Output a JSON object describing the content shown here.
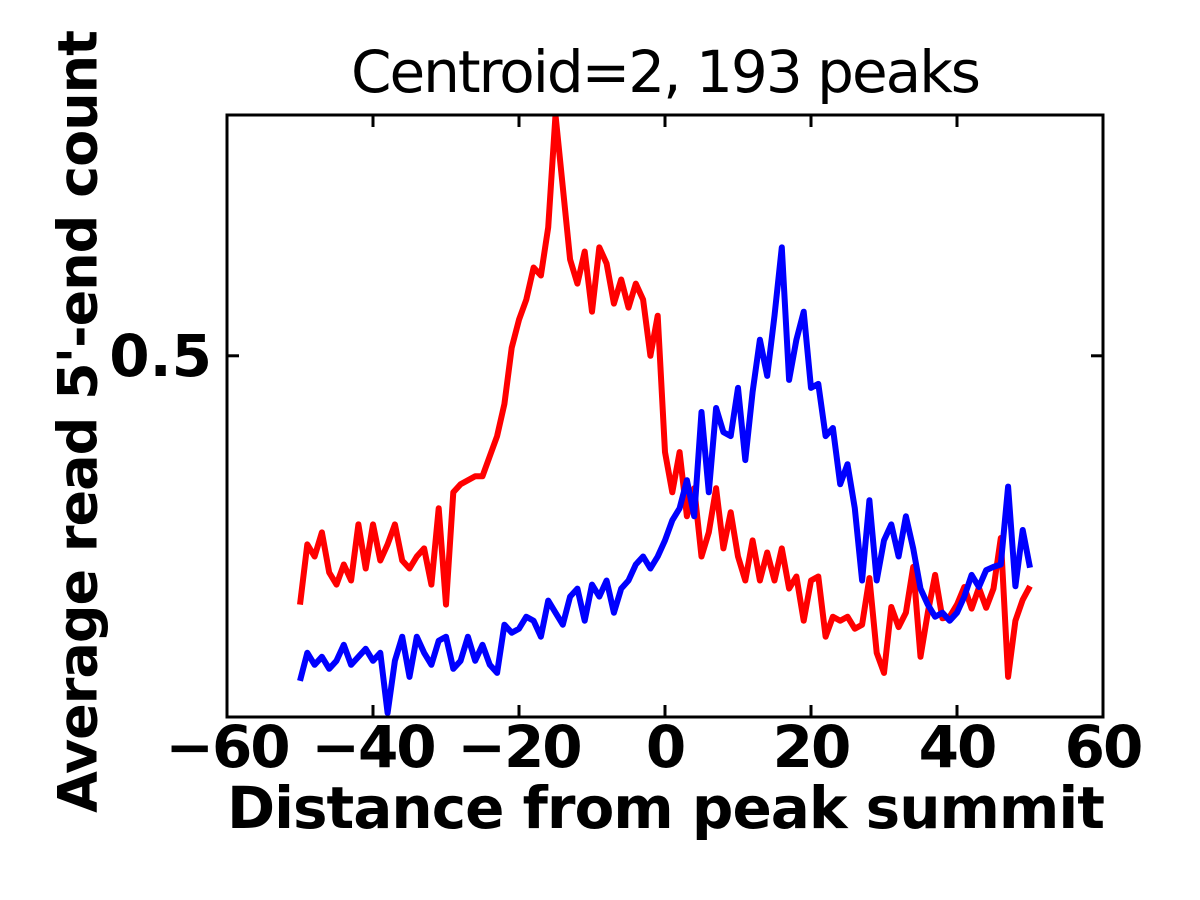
{
  "title": "Centroid=2, 193 peaks",
  "xlabel": "Distance from peak summit",
  "ylabel": "Average read 5'-end count",
  "colors": {
    "red_series": "#ff0000",
    "blue_series": "#0000ff",
    "axis": "#000000",
    "background": "#ffffff"
  },
  "axes": {
    "xlim": [
      -60,
      60
    ],
    "ylim": [
      0.05,
      0.8
    ],
    "xticks": [
      -60,
      -40,
      -20,
      0,
      20,
      40,
      60
    ],
    "xtick_labels": [
      "−60",
      "−40",
      "−20",
      "0",
      "20",
      "40",
      "60"
    ],
    "yticks": [
      0.5
    ],
    "ytick_labels": [
      "0.5"
    ]
  },
  "chart_data": {
    "type": "line",
    "title": "Centroid=2, 193 peaks",
    "xlabel": "Distance from peak summit",
    "ylabel": "Average read 5'-end count",
    "xlim": [
      -60,
      60
    ],
    "ylim": [
      0.05,
      0.8
    ],
    "grid": false,
    "legend": "none",
    "x": [
      -50,
      -49,
      -48,
      -47,
      -46,
      -45,
      -44,
      -43,
      -42,
      -41,
      -40,
      -39,
      -38,
      -37,
      -36,
      -35,
      -34,
      -33,
      -32,
      -31,
      -30,
      -29,
      -28,
      -27,
      -26,
      -25,
      -24,
      -23,
      -22,
      -21,
      -20,
      -19,
      -18,
      -17,
      -16,
      -15,
      -14,
      -13,
      -12,
      -11,
      -10,
      -9,
      -8,
      -7,
      -6,
      -5,
      -4,
      -3,
      -2,
      -1,
      0,
      1,
      2,
      3,
      4,
      5,
      6,
      7,
      8,
      9,
      10,
      11,
      12,
      13,
      14,
      15,
      16,
      17,
      18,
      19,
      20,
      21,
      22,
      23,
      24,
      25,
      26,
      27,
      28,
      29,
      30,
      31,
      32,
      33,
      34,
      35,
      36,
      37,
      38,
      39,
      40,
      41,
      42,
      43,
      44,
      45,
      46,
      47,
      48,
      49,
      50
    ],
    "series": [
      {
        "name": "red",
        "color": "#ff0000",
        "values": [
          0.19,
          0.265,
          0.25,
          0.28,
          0.23,
          0.215,
          0.24,
          0.22,
          0.29,
          0.235,
          0.29,
          0.245,
          0.265,
          0.29,
          0.245,
          0.235,
          0.25,
          0.26,
          0.215,
          0.31,
          0.19,
          0.33,
          0.34,
          0.345,
          0.35,
          0.35,
          0.375,
          0.4,
          0.44,
          0.51,
          0.545,
          0.57,
          0.61,
          0.6,
          0.66,
          0.8,
          0.71,
          0.62,
          0.59,
          0.63,
          0.555,
          0.635,
          0.615,
          0.565,
          0.595,
          0.56,
          0.59,
          0.57,
          0.5,
          0.55,
          0.38,
          0.33,
          0.38,
          0.3,
          0.335,
          0.25,
          0.28,
          0.335,
          0.26,
          0.305,
          0.25,
          0.22,
          0.27,
          0.22,
          0.255,
          0.22,
          0.26,
          0.21,
          0.225,
          0.17,
          0.22,
          0.225,
          0.15,
          0.175,
          0.17,
          0.175,
          0.16,
          0.165,
          0.223,
          0.13,
          0.105,
          0.187,
          0.162,
          0.18,
          0.237,
          0.125,
          0.18,
          0.227,
          0.173,
          0.175,
          0.19,
          0.212,
          0.185,
          0.211,
          0.186,
          0.21,
          0.273,
          0.1,
          0.17,
          0.196,
          0.213
        ]
      },
      {
        "name": "blue",
        "color": "#0000ff",
        "values": [
          0.095,
          0.13,
          0.115,
          0.125,
          0.11,
          0.12,
          0.14,
          0.115,
          0.125,
          0.135,
          0.12,
          0.13,
          0.055,
          0.12,
          0.15,
          0.1,
          0.15,
          0.13,
          0.115,
          0.145,
          0.15,
          0.11,
          0.12,
          0.15,
          0.12,
          0.14,
          0.115,
          0.105,
          0.165,
          0.155,
          0.16,
          0.175,
          0.17,
          0.15,
          0.195,
          0.18,
          0.165,
          0.2,
          0.21,
          0.17,
          0.215,
          0.2,
          0.22,
          0.18,
          0.21,
          0.22,
          0.24,
          0.25,
          0.235,
          0.25,
          0.27,
          0.295,
          0.31,
          0.345,
          0.3,
          0.43,
          0.33,
          0.435,
          0.405,
          0.4,
          0.46,
          0.37,
          0.455,
          0.52,
          0.475,
          0.55,
          0.635,
          0.47,
          0.52,
          0.555,
          0.46,
          0.465,
          0.4,
          0.41,
          0.34,
          0.365,
          0.31,
          0.22,
          0.32,
          0.22,
          0.27,
          0.29,
          0.25,
          0.3,
          0.26,
          0.21,
          0.19,
          0.175,
          0.18,
          0.17,
          0.18,
          0.2,
          0.227,
          0.212,
          0.233,
          0.237,
          0.24,
          0.337,
          0.213,
          0.283,
          0.236
        ]
      }
    ]
  }
}
